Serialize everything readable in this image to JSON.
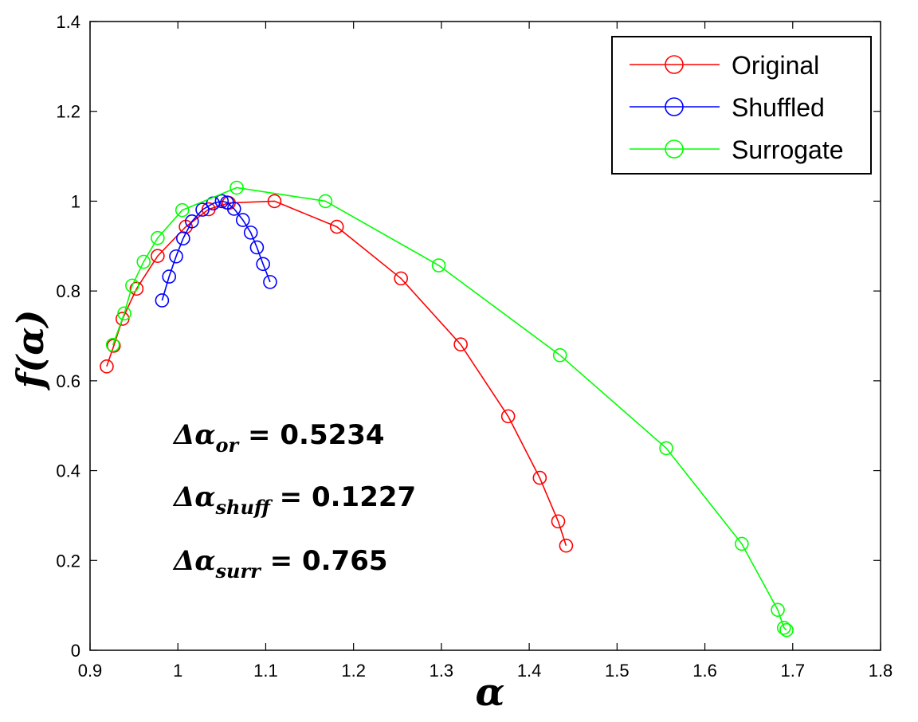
{
  "chart_data": {
    "type": "line",
    "title": "",
    "xlabel": "α",
    "ylabel": "f(α)",
    "xlim": [
      0.9,
      1.8
    ],
    "ylim": [
      0,
      1.4
    ],
    "xticks": [
      "0.9",
      "1",
      "1.1",
      "1.2",
      "1.3",
      "1.4",
      "1.5",
      "1.6",
      "1.7",
      "1.8"
    ],
    "yticks": [
      "0",
      "0.2",
      "0.4",
      "0.6",
      "0.8",
      "1",
      "1.2",
      "1.4"
    ],
    "grid": false,
    "legend_position": "top-right",
    "series": [
      {
        "name": "Original",
        "color": "#ff0000",
        "marker": "circle",
        "x": [
          0.919,
          0.927,
          0.937,
          0.953,
          0.977,
          1.009,
          1.035,
          1.058,
          1.11,
          1.181,
          1.254,
          1.322,
          1.376,
          1.412,
          1.433,
          1.442
        ],
        "y": [
          0.632,
          0.678,
          0.738,
          0.805,
          0.878,
          0.943,
          0.982,
          0.996,
          1.0,
          0.943,
          0.828,
          0.681,
          0.521,
          0.384,
          0.287,
          0.233
        ]
      },
      {
        "name": "Shuffled",
        "color": "#0000ff",
        "marker": "circle",
        "x": [
          0.982,
          0.99,
          0.998,
          1.006,
          1.016,
          1.028,
          1.04,
          1.05,
          1.056,
          1.064,
          1.074,
          1.083,
          1.09,
          1.097,
          1.105
        ],
        "y": [
          0.779,
          0.832,
          0.877,
          0.917,
          0.955,
          0.981,
          0.995,
          1.0,
          0.997,
          0.983,
          0.958,
          0.93,
          0.897,
          0.86,
          0.82
        ]
      },
      {
        "name": "Surrogate",
        "color": "#00ff00",
        "marker": "circle",
        "x": [
          0.926,
          0.939,
          0.948,
          0.961,
          0.977,
          1.005,
          1.067,
          1.168,
          1.297,
          1.435,
          1.556,
          1.642,
          1.683,
          1.69,
          1.693
        ],
        "y": [
          0.68,
          0.75,
          0.812,
          0.865,
          0.918,
          0.98,
          1.03,
          1.0,
          0.857,
          0.657,
          0.45,
          0.237,
          0.09,
          0.05,
          0.045
        ]
      }
    ],
    "annotations": [
      {
        "symbol": "Δα",
        "subscript": "or",
        "value": " = 0.5234"
      },
      {
        "symbol": "Δα",
        "subscript": "shuff",
        "value": " = 0.1227"
      },
      {
        "symbol": "Δα",
        "subscript": "surr",
        "value": " = 0.765"
      }
    ]
  }
}
